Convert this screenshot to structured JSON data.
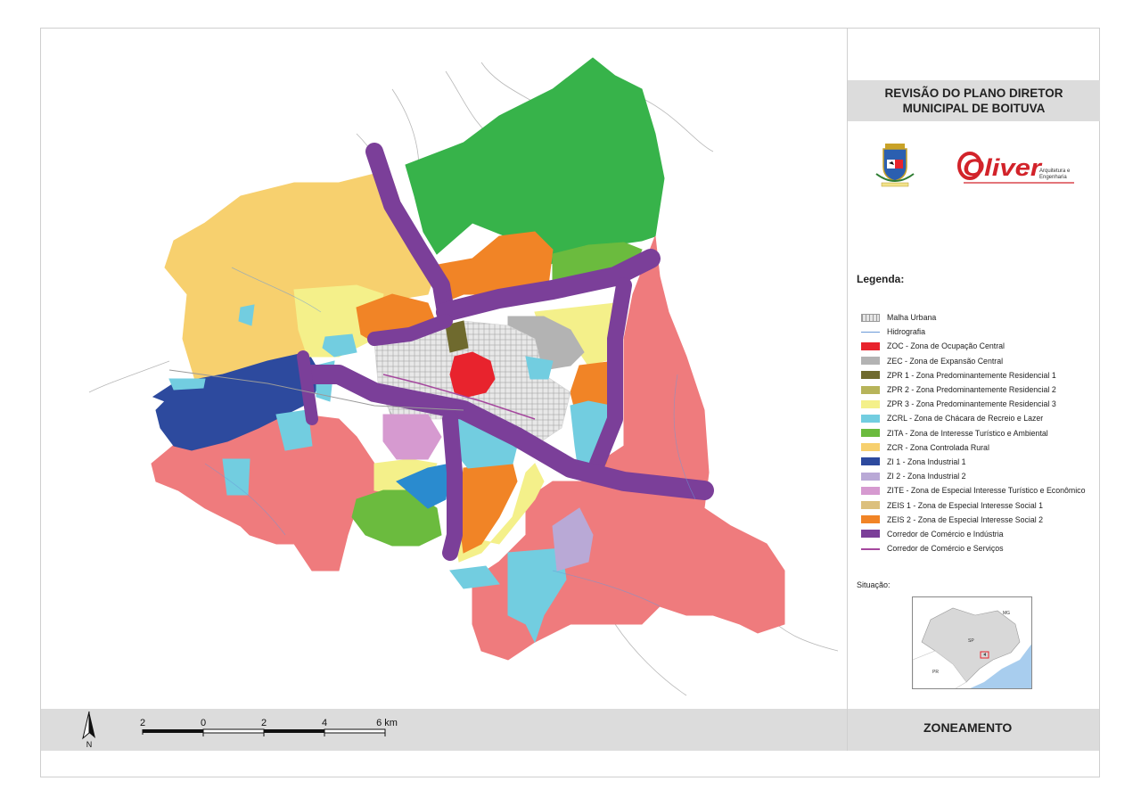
{
  "title": {
    "line1": "REVISÃO DO PLANO DIRETOR",
    "line2": "MUNICIPAL DE BOITUVA"
  },
  "logos": {
    "coat_of_arms": "boituva-coat-of-arms",
    "brand_word": "Oliver",
    "brand_sub1": "Arquitetura e",
    "brand_sub2": "Engenharia",
    "brand_color": "#d2232a"
  },
  "legend": {
    "title": "Legenda:",
    "items": [
      {
        "label": "Malha Urbana",
        "color": "#e6e6e6",
        "kind": "hatch"
      },
      {
        "label": "Hidrografia",
        "color": "#6a9ad8",
        "kind": "line"
      },
      {
        "label": "ZOC - Zona de Ocupação Central",
        "color": "#e8232d",
        "kind": "fill"
      },
      {
        "label": "ZEC - Zona de Expansão Central",
        "color": "#b3b3b3",
        "kind": "fill"
      },
      {
        "label": "ZPR 1 - Zona Predominantemente Residencial 1",
        "color": "#6f6a2e",
        "kind": "fill"
      },
      {
        "label": "ZPR 2 - Zona Predominantemente Residencial 2",
        "color": "#b7b45a",
        "kind": "fill"
      },
      {
        "label": "ZPR 3 - Zona Predominantemente Residencial 3",
        "color": "#f4f08a",
        "kind": "fill"
      },
      {
        "label": "ZCRL - Zona de Chácara de Recreio e Lazer",
        "color": "#72cde0",
        "kind": "fill"
      },
      {
        "label": "ZITA - Zona de Interesse Turístico e Ambiental",
        "color": "#6bbb3e",
        "kind": "fill"
      },
      {
        "label": "ZCR - Zona Controlada Rural",
        "color": "#f7d06e",
        "kind": "fill"
      },
      {
        "label": "ZI 1 - Zona Industrial 1",
        "color": "#2d4a9e",
        "kind": "fill"
      },
      {
        "label": "ZI 2 - Zona Industrial 2",
        "color": "#b9a9d6",
        "kind": "fill"
      },
      {
        "label": "ZITE - Zona de Especial Interesse Turístico e Econômico",
        "color": "#d69ad0",
        "kind": "fill"
      },
      {
        "label": "ZEIS 1 - Zona de Especial Interesse Social 1",
        "color": "#dcc07e",
        "kind": "fill"
      },
      {
        "label": "ZEIS 2 - Zona de Especial Interesse Social 2",
        "color": "#f18426",
        "kind": "fill"
      },
      {
        "label": "Corredor de Comércio e Indústria",
        "color": "#7b3f99",
        "kind": "fill"
      },
      {
        "label": "Corredor de Comércio e Serviços",
        "color": "#a5489e",
        "kind": "line"
      }
    ]
  },
  "situation": {
    "label": "Situação:",
    "states": {
      "mg": "MG",
      "sp": "SP",
      "pr": "PR"
    }
  },
  "scale_bar": {
    "ticks": [
      "2",
      "0",
      "2",
      "4",
      "6 km"
    ]
  },
  "north_arrow": {
    "label": "N"
  },
  "footer": {
    "title": "ZONEAMENTO"
  },
  "colors": {
    "zcr": "#f7d06e",
    "rural_pink": "#ef7b7d",
    "green_zone": "#37b34a",
    "corridor": "#7b3f99",
    "industrial": "#2d4a9e",
    "zcrl": "#72cde0",
    "zeis2": "#f18426",
    "zpr3": "#f4f08a",
    "zec": "#b3b3b3",
    "zoc": "#e8232d",
    "zita": "#6bbb3e",
    "zite": "#d69ad0",
    "zi2": "#b9a9d6"
  }
}
